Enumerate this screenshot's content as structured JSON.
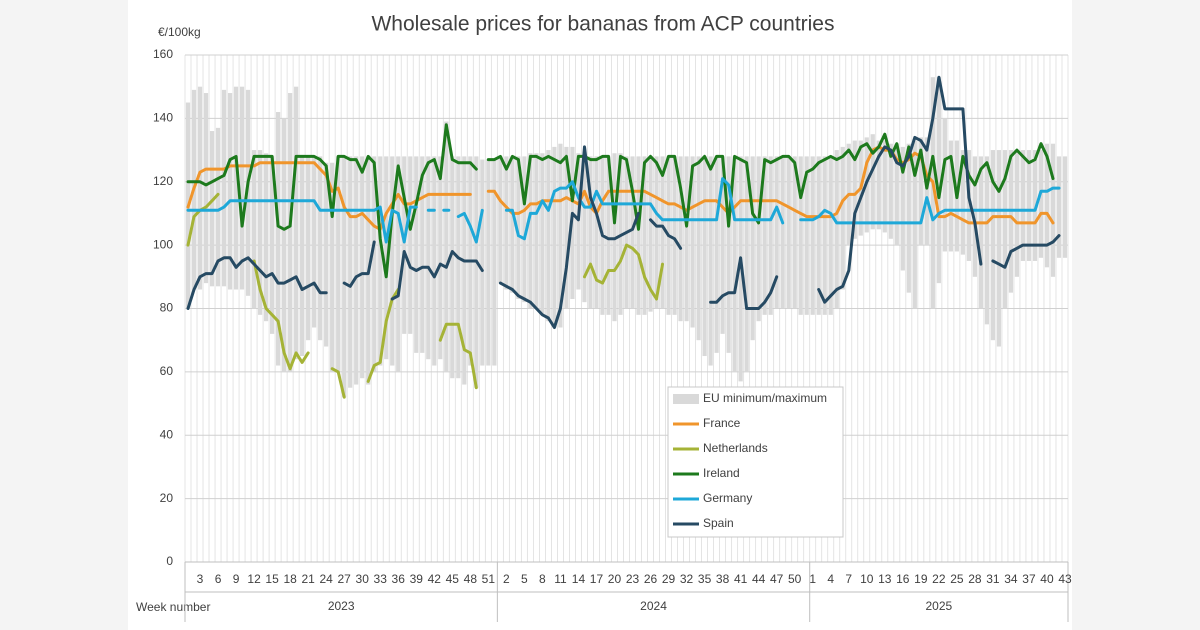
{
  "chart_data": {
    "type": "line",
    "title": "Wholesale prices for bananas from ACP countries",
    "y_label": "€/100kg",
    "x_label": "Week number",
    "ylim": [
      0,
      160
    ],
    "yticks": [
      0,
      20,
      40,
      60,
      80,
      100,
      120,
      140,
      160
    ],
    "grid": true,
    "legend_position": "center",
    "years": [
      {
        "label": "2023",
        "weeks": [
          null,
          null,
          "3",
          null,
          null,
          "6",
          null,
          null,
          "9",
          null,
          null,
          "12",
          null,
          null,
          "15",
          null,
          null,
          "18",
          null,
          null,
          "21",
          null,
          null,
          "24",
          null,
          null,
          "27",
          null,
          null,
          "30",
          null,
          null,
          "33",
          null,
          null,
          "36",
          null,
          null,
          "39",
          null,
          null,
          "42",
          null,
          null,
          "45",
          null,
          null,
          "48",
          null,
          null,
          "51",
          null
        ]
      },
      {
        "label": "2024",
        "weeks": [
          null,
          "2",
          null,
          null,
          "5",
          null,
          null,
          "8",
          null,
          null,
          "11",
          null,
          null,
          "14",
          null,
          null,
          "17",
          null,
          null,
          "20",
          null,
          null,
          "23",
          null,
          null,
          "26",
          null,
          null,
          "29",
          null,
          null,
          "32",
          null,
          null,
          "35",
          null,
          null,
          "38",
          null,
          null,
          "41",
          null,
          null,
          "44",
          null,
          null,
          "47",
          null,
          null,
          "50",
          null,
          null
        ]
      },
      {
        "label": "2025",
        "weeks": [
          "1",
          null,
          null,
          "4",
          null,
          null,
          "7",
          null,
          null,
          "10",
          null,
          null,
          "13",
          null,
          null,
          "16",
          null,
          null,
          "19",
          null,
          null,
          "22",
          null,
          null,
          "25",
          null,
          null,
          "28",
          null,
          null,
          "31",
          null,
          null,
          "34",
          null,
          null,
          "37",
          null,
          null,
          "40",
          null,
          null,
          "43"
        ]
      }
    ],
    "range": {
      "name": "EU minimum/maximum",
      "color": "#d9d9d9",
      "low": [
        80,
        86,
        86,
        88,
        87,
        87,
        87,
        86,
        86,
        86,
        84,
        80,
        78,
        76,
        72,
        62,
        60,
        60,
        64,
        65,
        70,
        74,
        70,
        68,
        60,
        60,
        52,
        55,
        56,
        58,
        56,
        60,
        62,
        64,
        62,
        60,
        72,
        72,
        66,
        66,
        64,
        62,
        64,
        60,
        58,
        58,
        56,
        62,
        55,
        62,
        62,
        62,
        88,
        86,
        85,
        83,
        82,
        80,
        80,
        78,
        76,
        74,
        74,
        80,
        83,
        86,
        82,
        80,
        80,
        78,
        78,
        76,
        78,
        80,
        80,
        78,
        78,
        79,
        80,
        80,
        78,
        78,
        76,
        76,
        74,
        70,
        65,
        62,
        66,
        72,
        66,
        60,
        57,
        60,
        70,
        76,
        78,
        78,
        80,
        80,
        80,
        80,
        78,
        78,
        78,
        78,
        78,
        78,
        80,
        86,
        100,
        102,
        103,
        104,
        105,
        105,
        104,
        102,
        100,
        92,
        85,
        80,
        100,
        100,
        80,
        88,
        98,
        98,
        98,
        97,
        95,
        90,
        80,
        75,
        70,
        68,
        80,
        85,
        90,
        95,
        95,
        95,
        96,
        93,
        90,
        96,
        96
      ],
      "high": [
        145,
        149,
        150,
        148,
        136,
        137,
        149,
        148,
        150,
        150,
        149,
        130,
        130,
        129,
        128,
        142,
        140,
        148,
        150,
        128,
        128,
        128,
        128,
        126,
        126,
        128,
        128,
        128,
        128,
        128,
        128,
        128,
        128,
        128,
        128,
        128,
        128,
        128,
        128,
        128,
        128,
        128,
        128,
        139,
        128,
        128,
        128,
        128,
        128,
        127,
        127,
        127,
        128,
        128,
        128,
        128,
        128,
        129,
        129,
        129,
        130,
        131,
        132,
        131,
        131,
        129,
        128,
        128,
        128,
        128,
        128,
        129,
        129,
        128,
        128,
        128,
        128,
        128,
        128,
        128,
        128,
        128,
        128,
        128,
        128,
        128,
        128,
        128,
        128,
        128,
        128,
        128,
        128,
        128,
        128,
        128,
        128,
        128,
        128,
        128,
        128,
        128,
        128,
        128,
        128,
        128,
        128,
        128,
        130,
        131,
        132,
        133,
        133,
        134,
        135,
        133,
        133,
        132,
        132,
        131,
        132,
        133,
        134,
        134,
        153,
        153,
        140,
        133,
        133,
        130,
        130,
        128,
        128,
        128,
        130,
        130,
        130,
        130,
        130,
        130,
        130,
        130,
        130,
        132,
        132,
        128,
        128
      ]
    },
    "series": [
      {
        "name": "France",
        "color": "#f0952b",
        "values": [
          112,
          118,
          123,
          124,
          124,
          124,
          124,
          125,
          125,
          125,
          125,
          125,
          126,
          126,
          126,
          126,
          126,
          126,
          126,
          126,
          126,
          126,
          124,
          122,
          117,
          118,
          112,
          109,
          109,
          110,
          108,
          106,
          105,
          110,
          113,
          116,
          113,
          113,
          114,
          115,
          116,
          116,
          116,
          116,
          116,
          116,
          116,
          116,
          null,
          null,
          117,
          117,
          114,
          112,
          110,
          110,
          111,
          113,
          113,
          114,
          114,
          114,
          114,
          115,
          114,
          113,
          117,
          112,
          110,
          114,
          117,
          117,
          117,
          117,
          117,
          117,
          117,
          116,
          115,
          114,
          113,
          113,
          112,
          111,
          112,
          113,
          114,
          114,
          114,
          112,
          110,
          112,
          114,
          114,
          114,
          114,
          114,
          114,
          114,
          113,
          112,
          111,
          110,
          109,
          109,
          109,
          109,
          109,
          110,
          114,
          116,
          116,
          118,
          126,
          130,
          131,
          130,
          130,
          127,
          126,
          127,
          129,
          128,
          122,
          120,
          109,
          109,
          110,
          109,
          108,
          107,
          107,
          107,
          107,
          109,
          109,
          109,
          109,
          107,
          107,
          107,
          107,
          110,
          110,
          107,
          null,
          null
        ]
      },
      {
        "name": "Netherlands",
        "color": "#a5b336",
        "values": [
          100,
          109,
          111,
          112,
          114,
          116,
          null,
          null,
          null,
          null,
          null,
          95,
          86,
          80,
          78,
          76,
          66,
          61,
          66,
          63,
          66,
          null,
          null,
          null,
          61,
          60,
          52,
          null,
          null,
          null,
          57,
          62,
          63,
          76,
          83,
          86,
          null,
          null,
          null,
          null,
          null,
          null,
          70,
          75,
          75,
          75,
          67,
          66,
          55,
          null,
          null,
          null,
          null,
          null,
          null,
          null,
          null,
          null,
          null,
          null,
          null,
          null,
          null,
          null,
          null,
          null,
          90,
          94,
          89,
          88,
          92,
          92,
          95,
          100,
          99,
          97,
          90,
          86,
          83,
          94,
          null,
          null,
          null,
          null,
          null,
          null,
          null,
          null,
          null,
          null,
          null,
          null,
          null,
          null,
          null,
          null,
          null,
          null,
          null,
          null,
          null,
          null,
          null,
          null,
          null,
          null,
          null,
          null,
          null,
          null,
          null,
          null,
          null,
          null,
          null,
          null,
          null,
          null,
          null,
          null,
          null,
          null,
          null,
          null,
          null,
          null,
          null,
          null,
          null,
          null,
          null,
          null,
          null,
          null,
          null,
          null,
          null,
          null,
          null,
          null,
          null,
          null,
          null,
          null,
          null,
          null,
          null
        ]
      },
      {
        "name": "Ireland",
        "color": "#1d7a1d",
        "values": [
          120,
          120,
          120,
          119,
          120,
          121,
          122,
          127,
          128,
          106,
          120,
          128,
          128,
          128,
          128,
          106,
          105,
          106,
          128,
          128,
          128,
          128,
          127,
          125,
          109,
          128,
          128,
          127,
          127,
          123,
          128,
          126,
          102,
          90,
          110,
          125,
          115,
          105,
          113,
          122,
          126,
          127,
          121,
          138,
          127,
          126,
          126,
          126,
          124,
          null,
          127,
          127,
          128,
          124,
          128,
          127,
          113,
          128,
          128,
          127,
          128,
          127,
          126,
          128,
          114,
          128,
          128,
          127,
          127,
          128,
          128,
          107,
          128,
          127,
          117,
          105,
          126,
          128,
          126,
          122,
          128,
          128,
          118,
          106,
          125,
          126,
          128,
          124,
          128,
          128,
          106,
          128,
          127,
          126,
          110,
          107,
          127,
          126,
          127,
          128,
          128,
          126,
          115,
          123,
          124,
          126,
          127,
          128,
          127,
          128,
          130,
          127,
          131,
          132,
          129,
          131,
          135,
          128,
          132,
          123,
          131,
          122,
          130,
          118,
          128,
          115,
          127,
          128,
          115,
          128,
          122,
          119,
          124,
          126,
          120,
          117,
          121,
          128,
          130,
          128,
          126,
          127,
          132,
          128,
          121,
          null,
          null
        ]
      },
      {
        "name": "Germany",
        "color": "#1ea8d8",
        "values": [
          111,
          111,
          111,
          111,
          111,
          111,
          112,
          114,
          114,
          114,
          114,
          114,
          114,
          114,
          114,
          114,
          114,
          114,
          114,
          114,
          114,
          114,
          111,
          111,
          111,
          111,
          111,
          111,
          111,
          111,
          111,
          111,
          112,
          101,
          111,
          110,
          101,
          112,
          112,
          null,
          111,
          111,
          null,
          111,
          null,
          109,
          110,
          106,
          101,
          111,
          null,
          null,
          null,
          111,
          111,
          103,
          102,
          110,
          110,
          114,
          111,
          117,
          118,
          118,
          120,
          115,
          112,
          112,
          117,
          113,
          113,
          113,
          113,
          113,
          113,
          113,
          113,
          113,
          110,
          108,
          108,
          108,
          108,
          108,
          108,
          108,
          108,
          108,
          108,
          121,
          119,
          108,
          108,
          108,
          108,
          108,
          108,
          108,
          112,
          107,
          null,
          null,
          108,
          108,
          108,
          109,
          111,
          110,
          107,
          107,
          107,
          107,
          107,
          107,
          107,
          107,
          107,
          107,
          107,
          107,
          107,
          107,
          107,
          115,
          108,
          110,
          111,
          111,
          111,
          111,
          111,
          111,
          111,
          111,
          111,
          111,
          111,
          111,
          111,
          111,
          111,
          111,
          117,
          117,
          118,
          118,
          null
        ]
      },
      {
        "name": "Spain",
        "color": "#264a63",
        "values": [
          80,
          86,
          90,
          91,
          91,
          95,
          96,
          96,
          93,
          95,
          96,
          94,
          92,
          90,
          91,
          88,
          88,
          89,
          90,
          86,
          87,
          88,
          85,
          85,
          null,
          null,
          88,
          87,
          90,
          91,
          91,
          101,
          null,
          null,
          83,
          84,
          98,
          93,
          92,
          93,
          93,
          90,
          94,
          93,
          98,
          96,
          95,
          95,
          95,
          92,
          null,
          null,
          88,
          87,
          86,
          84,
          83,
          82,
          80,
          78,
          77,
          74,
          80,
          93,
          110,
          108,
          131,
          115,
          110,
          103,
          102,
          102,
          103,
          104,
          105,
          110,
          null,
          108,
          106,
          106,
          103,
          102,
          99,
          null,
          null,
          null,
          null,
          82,
          82,
          84,
          85,
          85,
          96,
          80,
          80,
          80,
          82,
          85,
          90,
          null,
          null,
          null,
          null,
          null,
          null,
          86,
          82,
          84,
          86,
          87,
          92,
          110,
          115,
          120,
          124,
          128,
          131,
          130,
          126,
          125,
          128,
          134,
          133,
          130,
          140,
          153,
          143,
          143,
          143,
          143,
          115,
          107,
          94,
          null,
          95,
          94,
          93,
          98,
          99,
          100,
          100,
          100,
          100,
          100,
          101,
          103,
          null
        ]
      }
    ]
  }
}
